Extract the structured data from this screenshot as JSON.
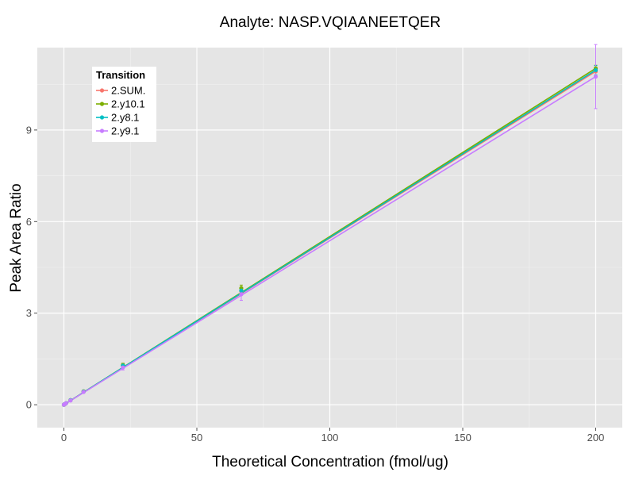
{
  "chart_data": {
    "type": "line",
    "title": "Analyte: NASP.VQIAANEETQER",
    "xlabel": "Theoretical Concentration (fmol/ug)",
    "ylabel": "Peak Area Ratio",
    "xlim": [
      -10,
      210
    ],
    "ylim": [
      -0.75,
      11.7
    ],
    "xticks": [
      0,
      50,
      100,
      150,
      200
    ],
    "yticks": [
      0,
      3,
      6,
      9
    ],
    "grid": true,
    "legend": {
      "title": "Transition",
      "position": "top-left"
    },
    "series": [
      {
        "name": "2.SUM.",
        "color": "#F8766D",
        "fit": [
          0.0,
          10.92
        ],
        "points": [
          {
            "x": 0,
            "y": 0.0,
            "err": 0.04
          },
          {
            "x": 0.27,
            "y": 0.02,
            "err": 0.02
          },
          {
            "x": 0.82,
            "y": 0.05,
            "err": 0.02
          },
          {
            "x": 2.5,
            "y": 0.15,
            "err": 0.03
          },
          {
            "x": 7.4,
            "y": 0.43,
            "err": 0.03
          },
          {
            "x": 22.2,
            "y": 1.28,
            "err": 0.06
          },
          {
            "x": 66.7,
            "y": 3.72,
            "err": 0.1
          },
          {
            "x": 200,
            "y": 10.92,
            "err": 0.2
          }
        ]
      },
      {
        "name": "2.y10.1",
        "color": "#7CAE00",
        "fit": [
          0.0,
          11.02
        ],
        "points": [
          {
            "x": 0,
            "y": 0.0,
            "err": 0.03
          },
          {
            "x": 0.27,
            "y": 0.02,
            "err": 0.02
          },
          {
            "x": 0.82,
            "y": 0.05,
            "err": 0.02
          },
          {
            "x": 2.5,
            "y": 0.15,
            "err": 0.03
          },
          {
            "x": 7.4,
            "y": 0.44,
            "err": 0.03
          },
          {
            "x": 22.2,
            "y": 1.3,
            "err": 0.06
          },
          {
            "x": 66.7,
            "y": 3.82,
            "err": 0.1
          },
          {
            "x": 200,
            "y": 11.02,
            "err": 0.1
          }
        ]
      },
      {
        "name": "2.y8.1",
        "color": "#00BFC4",
        "fit": [
          0.0,
          10.96
        ],
        "points": [
          {
            "x": 0,
            "y": 0.0,
            "err": 0.03
          },
          {
            "x": 0.27,
            "y": 0.02,
            "err": 0.02
          },
          {
            "x": 0.82,
            "y": 0.05,
            "err": 0.02
          },
          {
            "x": 2.5,
            "y": 0.15,
            "err": 0.03
          },
          {
            "x": 7.4,
            "y": 0.43,
            "err": 0.03
          },
          {
            "x": 22.2,
            "y": 1.28,
            "err": 0.05
          },
          {
            "x": 66.7,
            "y": 3.74,
            "err": 0.08
          },
          {
            "x": 200,
            "y": 10.96,
            "err": 0.15
          }
        ]
      },
      {
        "name": "2.y9.1",
        "color": "#C77CFF",
        "fit": [
          0.0,
          10.75
        ],
        "points": [
          {
            "x": 0,
            "y": 0.0,
            "err": 0.03
          },
          {
            "x": 0.27,
            "y": 0.02,
            "err": 0.02
          },
          {
            "x": 0.82,
            "y": 0.05,
            "err": 0.02
          },
          {
            "x": 2.5,
            "y": 0.14,
            "err": 0.03
          },
          {
            "x": 7.4,
            "y": 0.42,
            "err": 0.03
          },
          {
            "x": 22.2,
            "y": 1.22,
            "err": 0.08
          },
          {
            "x": 66.7,
            "y": 3.62,
            "err": 0.2
          },
          {
            "x": 200,
            "y": 10.75,
            "err": 1.05
          }
        ]
      }
    ]
  }
}
